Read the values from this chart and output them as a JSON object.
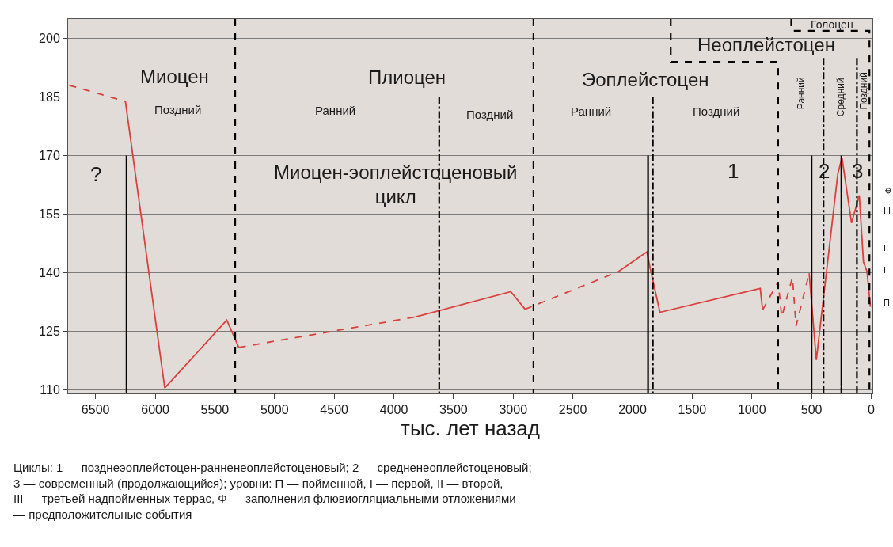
{
  "chart_data": {
    "type": "line",
    "xlabel": "тыс. лет назад",
    "xlim": [
      6730,
      -10
    ],
    "xticks": [
      6500,
      6000,
      5500,
      5000,
      4500,
      4000,
      3500,
      3000,
      2500,
      2000,
      1500,
      1000,
      500,
      0
    ],
    "ylim": [
      109,
      205
    ],
    "yticks": [
      110,
      125,
      140,
      155,
      170,
      185,
      200
    ],
    "grid": "y",
    "marker": "none",
    "series": [
      {
        "color": "#d9413f",
        "line_style": "dashed",
        "x": [
          6720,
          6250
        ],
        "values": [
          188,
          183.9
        ]
      },
      {
        "color": "#d9413f",
        "line_style": "solid",
        "x": [
          6250,
          5920,
          5400,
          5300
        ],
        "values": [
          183.9,
          110.4,
          127.8,
          120.8
        ]
      },
      {
        "color": "#d9413f",
        "line_style": "dashed",
        "x": [
          5300,
          3820
        ],
        "values": [
          120.8,
          128.6
        ]
      },
      {
        "color": "#d9413f",
        "line_style": "solid",
        "x": [
          3820,
          3020,
          2900
        ],
        "values": [
          128.6,
          135.1,
          130.6
        ]
      },
      {
        "color": "#d9413f",
        "line_style": "dashed",
        "x": [
          2900,
          2120
        ],
        "values": [
          130.6,
          140.2
        ]
      },
      {
        "color": "#d9413f",
        "line_style": "solid",
        "x": [
          2120,
          1880,
          1850,
          1770,
          930,
          910
        ],
        "values": [
          140.2,
          145.3,
          140.8,
          129.8,
          135.9,
          130.4
        ]
      },
      {
        "color": "#d9413f",
        "line_style": "dashed",
        "x": [
          910,
          780,
          750,
          660,
          630,
          520
        ],
        "values": [
          130.4,
          137.6,
          128.6,
          138.8,
          126.3,
          139.8
        ]
      },
      {
        "color": "#d9413f",
        "line_style": "solid",
        "x": [
          520,
          460,
          280,
          245,
          165,
          100,
          65,
          35,
          7
        ],
        "values": [
          139.8,
          117.6,
          165.3,
          169.4,
          152.7,
          159.8,
          142.7,
          140.2,
          131.2
        ]
      },
      {
        "color": "#000000",
        "line_style": "solid",
        "x": [
          6240,
          6240
        ],
        "values": [
          170,
          109
        ]
      },
      {
        "color": "#000000",
        "line_style": "solid",
        "x": [
          1870,
          1870
        ],
        "values": [
          170,
          109
        ]
      },
      {
        "color": "#000000",
        "line_style": "solid",
        "x": [
          500,
          500
        ],
        "values": [
          170,
          109
        ]
      },
      {
        "color": "#000000",
        "line_style": "solid",
        "x": [
          250,
          250
        ],
        "values": [
          170,
          109
        ]
      },
      {
        "color": "#000000",
        "line_style": "dashed",
        "x": [
          5330,
          5330
        ],
        "values": [
          205,
          109
        ]
      },
      {
        "color": "#000000",
        "line_style": "dashed",
        "x": [
          2830,
          2830
        ],
        "values": [
          205,
          109
        ]
      },
      {
        "color": "#000000",
        "line_style": "dashed",
        "x": [
          1680,
          1680,
          780,
          780
        ],
        "values": [
          205,
          194,
          194,
          109
        ]
      },
      {
        "color": "#000000",
        "line_style": "dashed",
        "x": [
          670,
          670,
          15,
          15
        ],
        "values": [
          205,
          202,
          202,
          109
        ]
      },
      {
        "color": "#000000",
        "line_style": "dashdot",
        "x": [
          3620,
          3620
        ],
        "values": [
          185,
          109
        ]
      },
      {
        "color": "#000000",
        "line_style": "dashdot",
        "x": [
          1830,
          1830
        ],
        "values": [
          185,
          109
        ]
      },
      {
        "color": "#000000",
        "line_style": "dashdot",
        "x": [
          400,
          400
        ],
        "values": [
          195,
          109
        ]
      },
      {
        "color": "#000000",
        "line_style": "dashdot",
        "x": [
          120,
          120
        ],
        "values": [
          195,
          109
        ]
      }
    ],
    "annotations": [
      "Миоцен",
      "Поздний",
      "Плиоцен",
      "Ранний",
      "Поздний",
      "Эоплейстоцен",
      "Ранний",
      "Поздний",
      "Неоплейстоцен",
      "Голоцен",
      "Ранний",
      "Средний",
      "Поздний",
      "?",
      "Миоцен-эоплейстоценовый\nцикл",
      "1",
      "2",
      "3",
      "Ф",
      "III",
      "II",
      "I",
      "П",
      "Циклы: 1 — позднеэоплейстоцен-ранненеоплейстоценовый; 2 — средненеоплейстоценовый;\n3 — современный (продолжающийся); уровни: П — пойменной, I — первой, II — второй,\nIII — третьей надпойменных террас, Ф — заполнения флювиогляциальными отложениями\n— предположительные события"
    ]
  }
}
